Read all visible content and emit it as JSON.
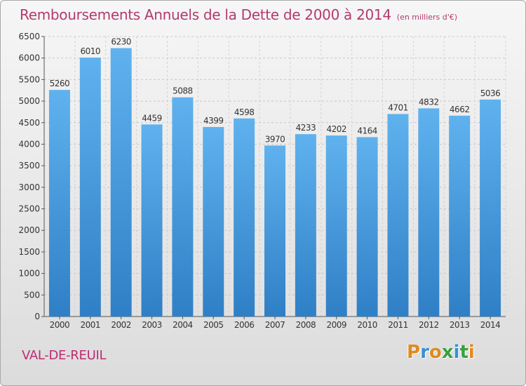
{
  "header": {
    "title": "Remboursements Annuels de la Dette de 2000 à 2014",
    "subtitle": "(en milliers d'€)"
  },
  "footer": {
    "commune": "VAL-DE-REUIL",
    "logo": "Proxiti"
  },
  "colors": {
    "bar": "#3f8fd6",
    "bar_light": "#5fb2ee",
    "title": "#b33a6e",
    "logo_letters": [
      "#e08a1e",
      "#3a8fd0",
      "#e08a1e",
      "#3aa040",
      "#3a8fd0",
      "#3aa040",
      "#e08a1e"
    ]
  },
  "chart_data": {
    "type": "bar",
    "title": "Remboursements Annuels de la Dette de 2000 à 2014",
    "subtitle": "(en milliers d'€)",
    "xlabel": "",
    "ylabel": "",
    "ylim": [
      0,
      6500
    ],
    "ytick_step": 500,
    "grid": true,
    "categories": [
      "2000",
      "2001",
      "2002",
      "2003",
      "2004",
      "2005",
      "2006",
      "2007",
      "2008",
      "2009",
      "2010",
      "2011",
      "2012",
      "2013",
      "2014"
    ],
    "values": [
      5260,
      6010,
      6230,
      4459,
      5088,
      4399,
      4598,
      3970,
      4233,
      4202,
      4164,
      4701,
      4832,
      4662,
      5036
    ]
  }
}
